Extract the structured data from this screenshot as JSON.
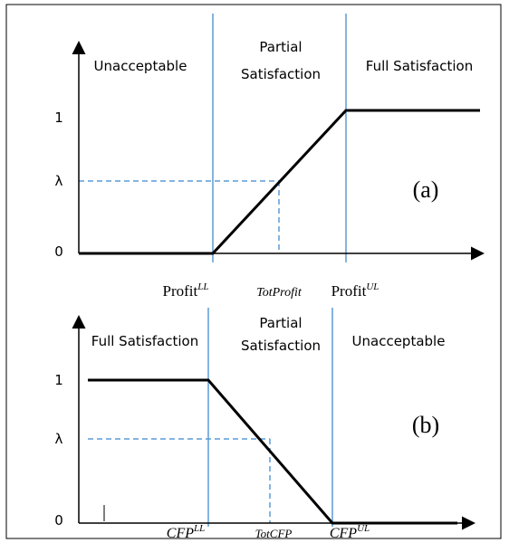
{
  "panels": [
    {
      "label": "(a)",
      "regions": [
        [
          "Unacceptable"
        ],
        [
          "Partial",
          "Satisfaction"
        ],
        [
          "Full Satisfaction"
        ]
      ],
      "y_labels": [
        "1",
        "λ",
        "0"
      ],
      "x_labels": [
        {
          "base": "Profit",
          "sup": "LL"
        },
        {
          "base": "TotProfit"
        },
        {
          "base": "Profit",
          "sup": "UL"
        }
      ]
    },
    {
      "label": "(b)",
      "regions": [
        [
          "Full Satisfaction"
        ],
        [
          "Partial",
          "Satisfaction"
        ],
        [
          "Unacceptable"
        ]
      ],
      "y_labels": [
        "1",
        "λ",
        "0"
      ],
      "x_labels": [
        {
          "base": "CFP",
          "sup": "LL"
        },
        {
          "base": "TotCFP"
        },
        {
          "base": "CFP",
          "sup": "UL"
        }
      ]
    }
  ]
}
